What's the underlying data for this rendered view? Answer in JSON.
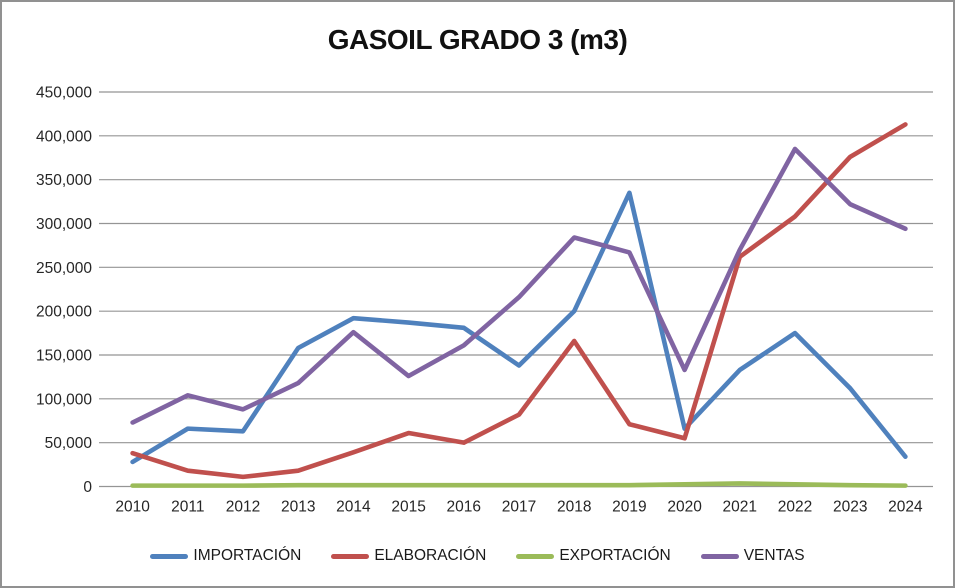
{
  "chart_data": {
    "type": "line",
    "title": "GASOIL GRADO 3 (m3)",
    "categories": [
      "2010",
      "2011",
      "2012",
      "2013",
      "2014",
      "2015",
      "2016",
      "2017",
      "2018",
      "2019",
      "2020",
      "2021",
      "2022",
      "2023",
      "2024"
    ],
    "series": [
      {
        "name": "IMPORTACIÓN",
        "color": "#4F81BD",
        "values": [
          28000,
          66000,
          63000,
          158000,
          192000,
          187000,
          181000,
          138000,
          200000,
          335000,
          66000,
          133000,
          175000,
          112000,
          34000
        ]
      },
      {
        "name": "ELABORACIÓN",
        "color": "#C0504D",
        "values": [
          38000,
          18000,
          11000,
          18000,
          39000,
          61000,
          50000,
          82000,
          166000,
          71000,
          55000,
          262000,
          308000,
          376000,
          413000
        ]
      },
      {
        "name": "EXPORTACIÓN",
        "color": "#9BBB59",
        "values": [
          1000,
          1000,
          1000,
          1500,
          1500,
          1500,
          1500,
          1500,
          1500,
          1500,
          2500,
          3500,
          2500,
          1500,
          1000
        ]
      },
      {
        "name": "VENTAS",
        "color": "#8064A2",
        "values": [
          73000,
          104000,
          88000,
          118000,
          176000,
          126000,
          161000,
          216000,
          284000,
          267000,
          133000,
          270000,
          385000,
          322000,
          294000
        ]
      }
    ],
    "ylim": [
      0,
      450000
    ],
    "y_ticks": [
      0,
      50000,
      100000,
      150000,
      200000,
      250000,
      300000,
      350000,
      400000,
      450000
    ],
    "y_tick_labels": [
      "0",
      "50,000",
      "100,000",
      "150,000",
      "200,000",
      "250,000",
      "300,000",
      "350,000",
      "400,000",
      "450,000"
    ],
    "grid": true,
    "legend_position": "bottom"
  },
  "styles": {
    "grid_color": "#959595",
    "axis_text_color": "#262626",
    "title_color": "#111111",
    "background": "#FFFFFF",
    "border_color": "#919191"
  }
}
